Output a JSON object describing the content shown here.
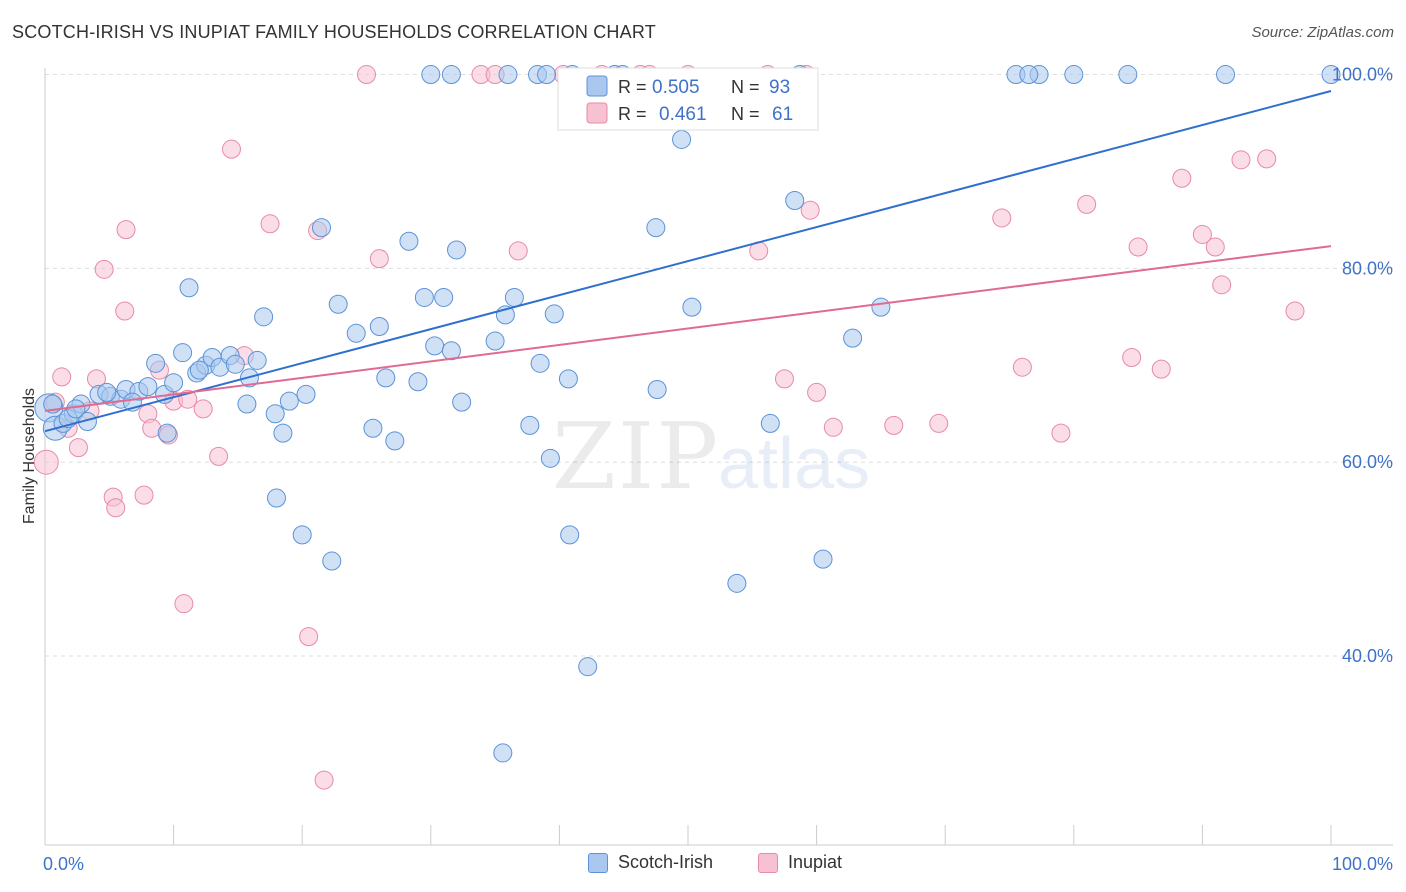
{
  "title": "SCOTCH-IRISH VS INUPIAT FAMILY HOUSEHOLDS CORRELATION CHART",
  "source": "Source: ZipAtlas.com",
  "watermark": {
    "zip": "ZIP",
    "atlas": "atlas"
  },
  "colors": {
    "blue_fill": "#aac8ef",
    "blue_stroke": "#5b93d8",
    "blue_line": "#2f6fce",
    "pink_fill": "#f6c1d1",
    "pink_stroke": "#e88aa8",
    "pink_line": "#e06a92",
    "axis_text": "#3f72c9",
    "grid": "#dddddd"
  },
  "legend": {
    "rows": [
      {
        "r_label": "R =",
        "r_value": "0.505",
        "n_label": "N =",
        "n_value": "93"
      },
      {
        "r_label": "R =",
        "r_value": "0.461",
        "n_label": "N =",
        "n_value": "61"
      }
    ]
  },
  "chart_data": {
    "type": "scatter",
    "xlabel": "",
    "ylabel": "Family Households",
    "xlim": [
      0,
      100
    ],
    "ylim": [
      20.5,
      101.5
    ],
    "x_tick_labels": [
      "0.0%",
      "100.0%"
    ],
    "y_ticks": [
      40,
      60,
      80,
      100
    ],
    "y_tick_labels": [
      "40.0%",
      "60.0%",
      "80.0%",
      "100.0%"
    ],
    "grid": true,
    "series": [
      {
        "name": "Scotch-Irish",
        "r": 0.505,
        "n": 93,
        "trend": {
          "x": [
            0,
            100
          ],
          "y": [
            63.2,
            98.3
          ]
        },
        "points": [
          [
            0.3,
            65.6,
            14
          ],
          [
            0.8,
            63.5,
            12
          ],
          [
            1.4,
            64.0,
            9
          ],
          [
            2.2,
            65.0,
            9
          ],
          [
            2.8,
            66.0,
            9
          ],
          [
            3.3,
            64.2,
            9
          ],
          [
            4.2,
            67.0,
            9
          ],
          [
            5.1,
            66.8,
            9
          ],
          [
            5.9,
            66.5,
            9
          ],
          [
            6.3,
            67.5,
            9
          ],
          [
            7.3,
            67.3,
            9
          ],
          [
            8.6,
            70.2,
            9
          ],
          [
            9.3,
            67.0,
            9
          ],
          [
            10.0,
            68.2,
            9
          ],
          [
            10.7,
            71.3,
            9
          ],
          [
            11.2,
            78.0,
            9
          ],
          [
            11.8,
            69.2,
            9
          ],
          [
            12.5,
            70.0,
            9
          ],
          [
            13.0,
            70.8,
            9
          ],
          [
            13.6,
            69.8,
            9
          ],
          [
            14.4,
            71.0,
            9
          ],
          [
            14.8,
            70.1,
            9
          ],
          [
            15.9,
            68.7,
            9
          ],
          [
            15.7,
            66.0,
            9
          ],
          [
            17.0,
            75.0,
            9
          ],
          [
            17.9,
            65.0,
            9
          ],
          [
            18.5,
            63.0,
            9
          ],
          [
            19.0,
            66.3,
            9
          ],
          [
            20.3,
            67.0,
            9
          ],
          [
            21.5,
            84.2,
            9
          ],
          [
            22.8,
            76.3,
            9
          ],
          [
            24.2,
            73.3,
            9
          ],
          [
            25.5,
            63.5,
            9
          ],
          [
            26.5,
            68.7,
            9
          ],
          [
            27.2,
            62.2,
            9
          ],
          [
            28.3,
            82.8,
            9
          ],
          [
            29.0,
            68.3,
            9
          ],
          [
            29.5,
            77.0,
            9
          ],
          [
            30.3,
            72.0,
            9
          ],
          [
            31.0,
            77.0,
            9
          ],
          [
            31.6,
            71.5,
            9
          ],
          [
            32.0,
            81.9,
            9
          ],
          [
            32.4,
            66.2,
            9
          ],
          [
            35.0,
            72.5,
            9
          ],
          [
            36.5,
            77.0,
            9
          ],
          [
            37.7,
            63.8,
            9
          ],
          [
            38.5,
            70.2,
            9
          ],
          [
            39.3,
            60.4,
            9
          ],
          [
            39.6,
            75.3,
            9
          ],
          [
            40.7,
            68.6,
            9
          ],
          [
            42.2,
            38.9,
            9
          ],
          [
            35.6,
            30.0,
            9
          ],
          [
            40.8,
            52.5,
            9
          ],
          [
            30.0,
            100.0,
            9
          ],
          [
            31.6,
            100.0,
            9
          ],
          [
            38.3,
            100.0,
            9
          ],
          [
            39.0,
            100.0,
            9
          ],
          [
            41.0,
            100.0,
            9
          ],
          [
            36.0,
            100.0,
            9
          ],
          [
            44.3,
            100.0,
            9
          ],
          [
            44.9,
            100.0,
            9
          ],
          [
            58.7,
            100.0,
            9
          ],
          [
            47.5,
            84.2,
            9
          ],
          [
            47.6,
            67.5,
            9
          ],
          [
            49.5,
            93.3,
            9
          ],
          [
            50.3,
            76.0,
            9
          ],
          [
            56.4,
            64.0,
            9
          ],
          [
            53.8,
            47.5,
            9
          ],
          [
            58.3,
            87.0,
            9
          ],
          [
            60.5,
            50.0,
            9
          ],
          [
            62.8,
            72.8,
            9
          ],
          [
            65.0,
            76.0,
            9
          ],
          [
            75.5,
            100.0,
            9
          ],
          [
            77.3,
            100.0,
            9
          ],
          [
            76.5,
            100.0,
            9
          ],
          [
            80.0,
            100.0,
            9
          ],
          [
            84.2,
            100.0,
            9
          ],
          [
            91.8,
            100.0,
            9
          ],
          [
            100.0,
            100.0,
            9
          ],
          [
            18.0,
            56.3,
            9
          ],
          [
            20.0,
            52.5,
            9
          ],
          [
            22.3,
            49.8,
            9
          ],
          [
            9.5,
            63.0,
            9
          ],
          [
            1.8,
            64.5,
            9
          ],
          [
            0.6,
            66.0,
            9
          ],
          [
            2.4,
            65.5,
            9
          ],
          [
            4.8,
            67.2,
            9
          ],
          [
            6.8,
            66.2,
            9
          ],
          [
            8.0,
            67.8,
            9
          ],
          [
            12.0,
            69.5,
            9
          ],
          [
            16.5,
            70.5,
            9
          ],
          [
            26.0,
            74.0,
            9
          ],
          [
            35.8,
            75.2,
            9
          ]
        ]
      },
      {
        "name": "Inupiat",
        "r": 0.461,
        "n": 61,
        "trend": {
          "x": [
            0,
            100
          ],
          "y": [
            65.3,
            82.3
          ]
        },
        "points": [
          [
            0.1,
            60.0,
            12
          ],
          [
            0.8,
            66.2,
            9
          ],
          [
            1.3,
            68.8,
            9
          ],
          [
            1.8,
            63.5,
            9
          ],
          [
            2.6,
            61.5,
            9
          ],
          [
            3.5,
            65.3,
            9
          ],
          [
            4.0,
            68.6,
            9
          ],
          [
            4.6,
            79.9,
            9
          ],
          [
            5.3,
            56.4,
            9
          ],
          [
            5.5,
            55.3,
            9
          ],
          [
            6.2,
            75.6,
            9
          ],
          [
            6.3,
            84.0,
            9
          ],
          [
            7.7,
            56.6,
            9
          ],
          [
            8.0,
            65.0,
            9
          ],
          [
            8.3,
            63.5,
            9
          ],
          [
            8.9,
            69.5,
            9
          ],
          [
            9.6,
            62.8,
            9
          ],
          [
            10.0,
            66.3,
            9
          ],
          [
            10.8,
            45.4,
            9
          ],
          [
            11.1,
            66.5,
            9
          ],
          [
            12.3,
            65.5,
            9
          ],
          [
            13.5,
            60.6,
            9
          ],
          [
            14.5,
            92.3,
            9
          ],
          [
            15.5,
            71.0,
            9
          ],
          [
            17.5,
            84.6,
            9
          ],
          [
            20.5,
            42.0,
            9
          ],
          [
            21.2,
            83.9,
            9
          ],
          [
            21.7,
            27.2,
            9
          ],
          [
            25.0,
            100.0,
            9
          ],
          [
            26.0,
            81.0,
            9
          ],
          [
            33.9,
            100.0,
            9
          ],
          [
            35.0,
            100.0,
            9
          ],
          [
            43.3,
            100.0,
            9
          ],
          [
            36.8,
            81.8,
            9
          ],
          [
            40.3,
            100.0,
            9
          ],
          [
            46.3,
            100.0,
            9
          ],
          [
            47.0,
            100.0,
            9
          ],
          [
            50.0,
            100.0,
            9
          ],
          [
            55.5,
            81.8,
            9
          ],
          [
            56.2,
            100.0,
            9
          ],
          [
            57.5,
            68.6,
            9
          ],
          [
            59.2,
            100.0,
            9
          ],
          [
            59.5,
            86.0,
            9
          ],
          [
            60.0,
            67.2,
            9
          ],
          [
            61.3,
            63.6,
            9
          ],
          [
            66.0,
            63.8,
            9
          ],
          [
            69.5,
            64.0,
            9
          ],
          [
            74.4,
            85.2,
            9
          ],
          [
            76.0,
            69.8,
            9
          ],
          [
            79.0,
            63.0,
            9
          ],
          [
            81.0,
            86.6,
            9
          ],
          [
            84.5,
            70.8,
            9
          ],
          [
            85.0,
            82.2,
            9
          ],
          [
            86.8,
            69.6,
            9
          ],
          [
            88.4,
            89.3,
            9
          ],
          [
            90.0,
            83.5,
            9
          ],
          [
            91.0,
            82.2,
            9
          ],
          [
            91.5,
            78.3,
            9
          ],
          [
            93.0,
            91.2,
            9
          ],
          [
            95.0,
            91.3,
            9
          ],
          [
            97.2,
            75.6,
            9
          ]
        ]
      }
    ]
  }
}
